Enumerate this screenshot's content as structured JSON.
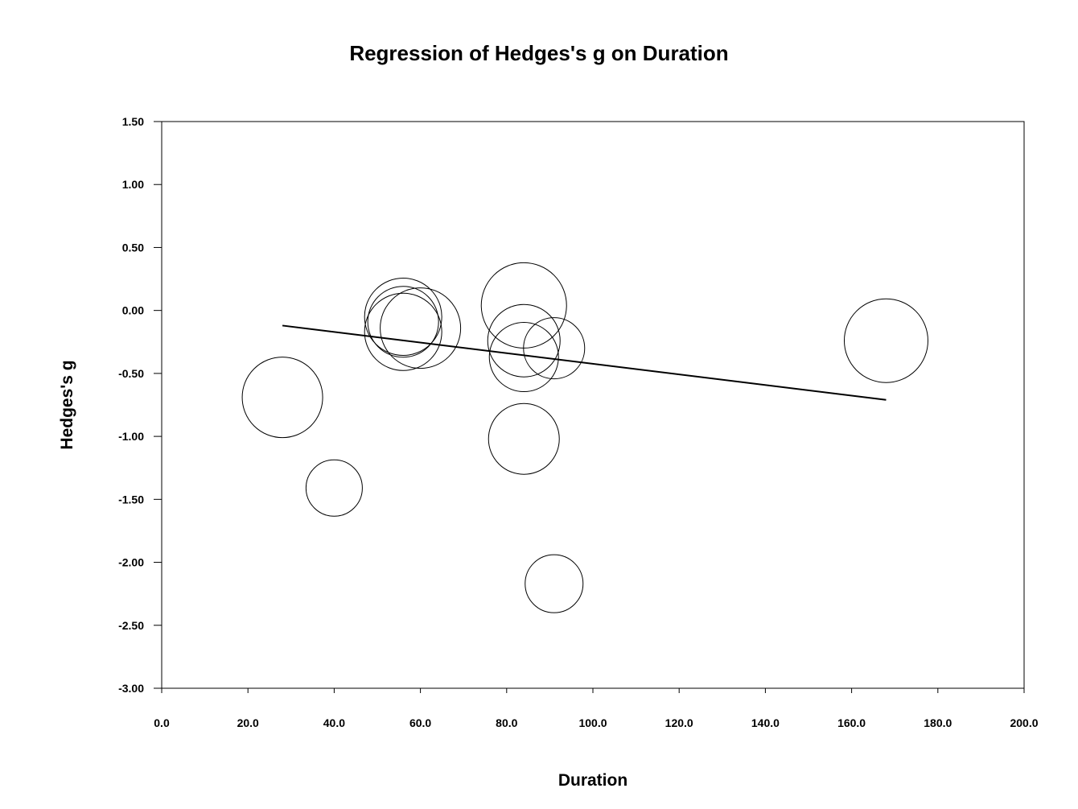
{
  "chart_data": {
    "type": "scatter",
    "title": "Regression of Hedges's g on Duration",
    "xlabel": "Duration",
    "ylabel": "Hedges's g",
    "xlim": [
      0,
      200
    ],
    "ylim": [
      -3.0,
      1.5
    ],
    "x_ticks": [
      0,
      20,
      40,
      60,
      80,
      100,
      120,
      140,
      160,
      180,
      200
    ],
    "x_tick_labels": [
      "0.0",
      "20.0",
      "40.0",
      "60.0",
      "80.0",
      "100.0",
      "120.0",
      "140.0",
      "160.0",
      "180.0",
      "200.0"
    ],
    "y_ticks": [
      1.5,
      1.0,
      0.5,
      0.0,
      -0.5,
      -1.0,
      -1.5,
      -2.0,
      -2.5,
      -3.0
    ],
    "y_tick_labels": [
      "1.50",
      "1.00",
      "0.50",
      "0.00",
      "-0.50",
      "-1.00",
      "-1.50",
      "-2.00",
      "-2.50",
      "-3.00"
    ],
    "grid": false,
    "legend": "none",
    "points": [
      {
        "x": 28,
        "y": -0.69,
        "weight": 50
      },
      {
        "x": 40,
        "y": -1.41,
        "weight": 35
      },
      {
        "x": 56,
        "y": -0.05,
        "weight": 48
      },
      {
        "x": 56,
        "y": -0.09,
        "weight": 44
      },
      {
        "x": 56,
        "y": -0.17,
        "weight": 48
      },
      {
        "x": 60,
        "y": -0.14,
        "weight": 50
      },
      {
        "x": 84,
        "y": 0.04,
        "weight": 53
      },
      {
        "x": 84,
        "y": -0.24,
        "weight": 45
      },
      {
        "x": 84,
        "y": -0.37,
        "weight": 43
      },
      {
        "x": 84,
        "y": -1.02,
        "weight": 44
      },
      {
        "x": 91,
        "y": -0.3,
        "weight": 38
      },
      {
        "x": 91,
        "y": -2.17,
        "weight": 36
      },
      {
        "x": 168,
        "y": -0.24,
        "weight": 52
      }
    ],
    "regression_line": {
      "x": [
        28,
        168
      ],
      "y": [
        -0.12,
        -0.71
      ]
    }
  }
}
